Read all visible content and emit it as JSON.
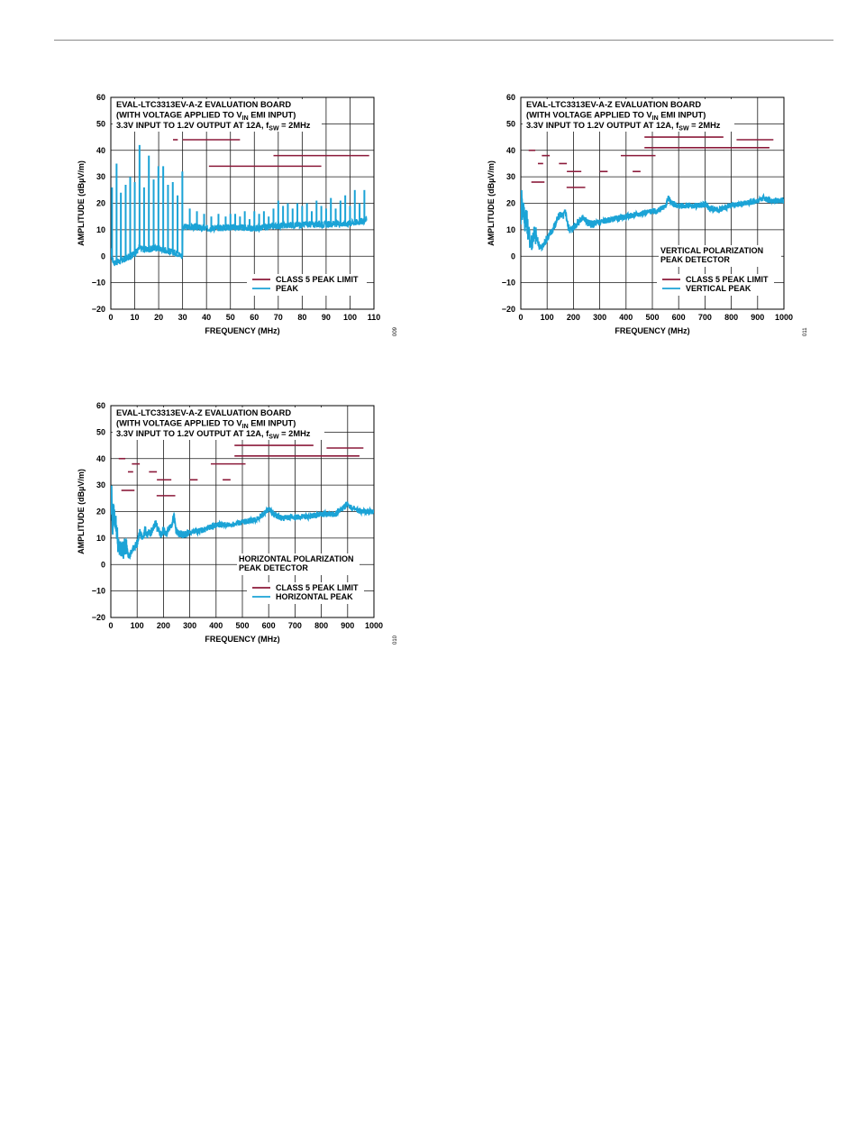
{
  "colors": {
    "limit": "#8b1a3a",
    "trace": "#1ba3d6",
    "grid": "#1a1a1a"
  },
  "chart_data": [
    {
      "type": "line",
      "title_lines": [
        "EVAL-LTC3313EV-A-Z EVALUATION BOARD",
        "(WITH VOLTAGE APPLIED TO ",
        "V",
        "IN",
        " EMI INPUT)",
        "3.3V INPUT TO 1.2V OUTPUT AT 12A, f",
        "SW",
        " = 2MHz"
      ],
      "title_1": "EVAL-LTC3313EV-A-Z EVALUATION BOARD",
      "title_2a": "(WITH VOLTAGE APPLIED TO V",
      "title_2sub": "IN",
      "title_2b": " EMI INPUT)",
      "title_3a": "3.3V INPUT TO 1.2V OUTPUT AT 12A, f",
      "title_3sub": "SW",
      "title_3b": " = 2MHz",
      "xlabel": "FREQUENCY (MHz)",
      "ylabel": "AMPLITUDE (dBµV/m)",
      "xlim": [
        0,
        110
      ],
      "ylim": [
        -20,
        60
      ],
      "xticks": [
        "0",
        "10",
        "20",
        "30",
        "40",
        "50",
        "60",
        "70",
        "80",
        "90",
        "100",
        "110"
      ],
      "yticks": [
        "60",
        "50",
        "40",
        "30",
        "20",
        "10",
        "0",
        "−10",
        "−20"
      ],
      "legend": [
        "CLASS 5 PEAK LIMIT",
        "PEAK"
      ],
      "note_lines": [],
      "figure_id": "009",
      "limit_segments": [
        {
          "x": [
            1,
            2
          ],
          "y": 54
        },
        {
          "x": [
            6,
            7
          ],
          "y": 54
        },
        {
          "x": [
            26,
            28
          ],
          "y": 44
        },
        {
          "x": [
            30,
            54
          ],
          "y": 44
        },
        {
          "x": [
            41,
            88
          ],
          "y": 34
        },
        {
          "x": [
            68,
            108
          ],
          "y": 38
        }
      ],
      "trace": {
        "baseline": [
          [
            0,
            2
          ],
          [
            0.5,
            -1
          ],
          [
            1.5,
            -2.5
          ],
          [
            5,
            -1.5
          ],
          [
            8,
            0
          ],
          [
            10,
            1
          ],
          [
            12,
            3
          ],
          [
            15,
            2.5
          ],
          [
            18,
            3
          ],
          [
            20,
            3
          ],
          [
            24,
            2
          ],
          [
            28,
            1
          ],
          [
            29.9,
            0
          ],
          [
            30.1,
            11
          ],
          [
            35,
            11
          ],
          [
            40,
            10.5
          ],
          [
            50,
            11
          ],
          [
            60,
            10.5
          ],
          [
            70,
            11.5
          ],
          [
            80,
            12
          ],
          [
            90,
            12
          ],
          [
            100,
            12.5
          ],
          [
            107,
            13.5
          ]
        ],
        "spikes": [
          [
            0.5,
            26
          ],
          [
            2.4,
            35
          ],
          [
            4.2,
            24
          ],
          [
            6.2,
            27
          ],
          [
            8.1,
            30
          ],
          [
            10,
            28
          ],
          [
            12,
            42
          ],
          [
            13.9,
            26
          ],
          [
            15.9,
            38
          ],
          [
            17.9,
            29
          ],
          [
            19.9,
            34
          ],
          [
            21.9,
            34
          ],
          [
            23.9,
            27
          ],
          [
            25.9,
            28
          ],
          [
            27.9,
            23
          ],
          [
            29.9,
            32
          ],
          [
            33,
            18
          ],
          [
            36,
            17
          ],
          [
            39,
            16
          ],
          [
            42,
            15
          ],
          [
            45,
            16
          ],
          [
            48,
            15
          ],
          [
            50,
            16
          ],
          [
            52,
            16
          ],
          [
            54,
            15
          ],
          [
            56,
            17
          ],
          [
            58,
            14
          ],
          [
            60,
            17
          ],
          [
            62,
            16
          ],
          [
            64,
            17
          ],
          [
            66,
            15
          ],
          [
            68,
            18
          ],
          [
            70,
            21
          ],
          [
            72,
            19
          ],
          [
            74,
            20
          ],
          [
            76,
            18
          ],
          [
            78,
            20
          ],
          [
            80,
            19
          ],
          [
            82,
            20
          ],
          [
            84,
            17
          ],
          [
            86,
            21
          ],
          [
            88,
            19
          ],
          [
            90,
            18
          ],
          [
            92,
            22
          ],
          [
            94,
            18
          ],
          [
            96,
            21
          ],
          [
            98,
            23
          ],
          [
            100,
            19
          ],
          [
            102,
            25
          ],
          [
            104,
            20
          ],
          [
            106,
            25
          ]
        ]
      }
    },
    {
      "type": "line",
      "title_1": "EVAL-LTC3313EV-A-Z EVALUATION BOARD",
      "title_2a": "(WITH VOLTAGE APPLIED TO V",
      "title_2sub": "IN",
      "title_2b": " EMI INPUT)",
      "title_3a": "3.3V INPUT TO 1.2V OUTPUT AT 12A, f",
      "title_3sub": "SW",
      "title_3b": " = 2MHz",
      "xlabel": "FREQUENCY (MHz)",
      "ylabel": "AMPLITUDE (dBµV/m)",
      "xlim": [
        0,
        1000
      ],
      "ylim": [
        -20,
        60
      ],
      "xticks": [
        "0",
        "100",
        "200",
        "300",
        "400",
        "500",
        "600",
        "700",
        "800",
        "900",
        "1000"
      ],
      "yticks": [
        "60",
        "50",
        "40",
        "30",
        "20",
        "10",
        "0",
        "−10",
        "−20"
      ],
      "legend": [
        "CLASS 5 PEAK LIMIT",
        "VERTICAL PEAK"
      ],
      "note_lines": [
        "VERTICAL POLARIZATION",
        "PEAK DETECTOR"
      ],
      "figure_id": "011",
      "limit_segments": [
        {
          "x": [
            30,
            55
          ],
          "y": 40
        },
        {
          "x": [
            40,
            90
          ],
          "y": 28
        },
        {
          "x": [
            65,
            85
          ],
          "y": 35
        },
        {
          "x": [
            80,
            110
          ],
          "y": 38
        },
        {
          "x": [
            145,
            175
          ],
          "y": 35
        },
        {
          "x": [
            175,
            230
          ],
          "y": 32
        },
        {
          "x": [
            174,
            245
          ],
          "y": 26
        },
        {
          "x": [
            300,
            330
          ],
          "y": 32
        },
        {
          "x": [
            380,
            512
          ],
          "y": 38
        },
        {
          "x": [
            425,
            455
          ],
          "y": 32
        },
        {
          "x": [
            470,
            770
          ],
          "y": 45
        },
        {
          "x": [
            470,
            945
          ],
          "y": 41
        },
        {
          "x": [
            820,
            960
          ],
          "y": 44
        }
      ],
      "trace": {
        "points": [
          [
            0,
            15
          ],
          [
            3,
            28
          ],
          [
            6,
            14
          ],
          [
            10,
            20
          ],
          [
            15,
            12
          ],
          [
            20,
            16
          ],
          [
            30,
            8
          ],
          [
            40,
            5
          ],
          [
            50,
            9
          ],
          [
            60,
            7
          ],
          [
            70,
            4
          ],
          [
            80,
            3
          ],
          [
            90,
            5
          ],
          [
            100,
            7
          ],
          [
            110,
            8
          ],
          [
            120,
            10
          ],
          [
            130,
            12
          ],
          [
            140,
            14
          ],
          [
            150,
            16
          ],
          [
            160,
            15
          ],
          [
            170,
            17
          ],
          [
            180,
            11
          ],
          [
            190,
            10
          ],
          [
            200,
            11
          ],
          [
            210,
            12
          ],
          [
            220,
            13
          ],
          [
            230,
            14
          ],
          [
            240,
            15
          ],
          [
            250,
            13
          ],
          [
            270,
            12
          ],
          [
            300,
            13
          ],
          [
            350,
            14
          ],
          [
            400,
            15
          ],
          [
            450,
            16
          ],
          [
            500,
            17
          ],
          [
            520,
            17
          ],
          [
            550,
            19
          ],
          [
            560,
            22
          ],
          [
            575,
            20
          ],
          [
            600,
            19
          ],
          [
            650,
            19
          ],
          [
            700,
            19.5
          ],
          [
            720,
            18
          ],
          [
            750,
            17.5
          ],
          [
            800,
            19
          ],
          [
            850,
            20
          ],
          [
            900,
            21
          ],
          [
            920,
            22
          ],
          [
            950,
            21
          ],
          [
            1000,
            21
          ]
        ]
      }
    },
    {
      "type": "line",
      "title_1": "EVAL-LTC3313EV-A-Z EVALUATION BOARD",
      "title_2a": "(WITH VOLTAGE APPLIED TO V",
      "title_2sub": "IN",
      "title_2b": " EMI INPUT)",
      "title_3a": "3.3V INPUT TO 1.2V OUTPUT AT 12A, f",
      "title_3sub": "SW",
      "title_3b": " = 2MHz",
      "xlabel": "FREQUENCY (MHz)",
      "ylabel": "AMPLITUDE (dBµV/m)",
      "xlim": [
        0,
        1000
      ],
      "ylim": [
        -20,
        60
      ],
      "xticks": [
        "0",
        "100",
        "200",
        "300",
        "400",
        "500",
        "600",
        "700",
        "800",
        "900",
        "1000"
      ],
      "yticks": [
        "60",
        "50",
        "40",
        "30",
        "20",
        "10",
        "0",
        "−10",
        "−20"
      ],
      "legend": [
        "CLASS 5 PEAK LIMIT",
        "HORIZONTAL PEAK"
      ],
      "note_lines": [
        "HORIZONTAL POLARIZATION",
        "PEAK DETECTOR"
      ],
      "figure_id": "010",
      "limit_segments": [
        {
          "x": [
            30,
            55
          ],
          "y": 40
        },
        {
          "x": [
            40,
            90
          ],
          "y": 28
        },
        {
          "x": [
            65,
            85
          ],
          "y": 35
        },
        {
          "x": [
            80,
            110
          ],
          "y": 38
        },
        {
          "x": [
            145,
            175
          ],
          "y": 35
        },
        {
          "x": [
            175,
            230
          ],
          "y": 32
        },
        {
          "x": [
            174,
            245
          ],
          "y": 26
        },
        {
          "x": [
            300,
            330
          ],
          "y": 32
        },
        {
          "x": [
            380,
            512
          ],
          "y": 38
        },
        {
          "x": [
            425,
            455
          ],
          "y": 32
        },
        {
          "x": [
            470,
            770
          ],
          "y": 45
        },
        {
          "x": [
            470,
            945
          ],
          "y": 41
        },
        {
          "x": [
            820,
            960
          ],
          "y": 44
        }
      ],
      "trace": {
        "points": [
          [
            0,
            20
          ],
          [
            3,
            30
          ],
          [
            6,
            12
          ],
          [
            10,
            20
          ],
          [
            20,
            15
          ],
          [
            30,
            6
          ],
          [
            40,
            5
          ],
          [
            60,
            7
          ],
          [
            70,
            3
          ],
          [
            80,
            5
          ],
          [
            90,
            7
          ],
          [
            100,
            8
          ],
          [
            110,
            12
          ],
          [
            120,
            10
          ],
          [
            130,
            13
          ],
          [
            140,
            11
          ],
          [
            150,
            12
          ],
          [
            160,
            13
          ],
          [
            170,
            16
          ],
          [
            180,
            13
          ],
          [
            190,
            11
          ],
          [
            200,
            13
          ],
          [
            210,
            11
          ],
          [
            220,
            14
          ],
          [
            230,
            15
          ],
          [
            240,
            18
          ],
          [
            250,
            12
          ],
          [
            270,
            11
          ],
          [
            300,
            12
          ],
          [
            350,
            13
          ],
          [
            400,
            15
          ],
          [
            450,
            15
          ],
          [
            500,
            16
          ],
          [
            550,
            17
          ],
          [
            580,
            19
          ],
          [
            600,
            21
          ],
          [
            620,
            19
          ],
          [
            650,
            17.5
          ],
          [
            700,
            18
          ],
          [
            750,
            18
          ],
          [
            800,
            19
          ],
          [
            850,
            19
          ],
          [
            880,
            21
          ],
          [
            900,
            23
          ],
          [
            920,
            21
          ],
          [
            950,
            20
          ],
          [
            1000,
            20
          ]
        ]
      }
    }
  ]
}
